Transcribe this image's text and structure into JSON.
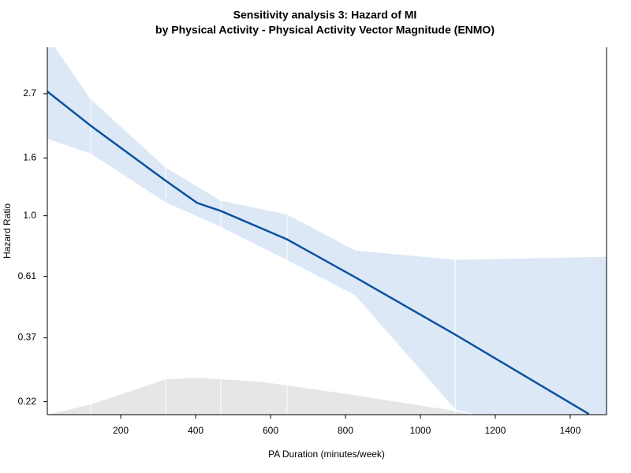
{
  "chart_data": {
    "type": "spline-ci",
    "title": "Sensitivity analysis 3: Hazard of MI",
    "subtitle": "by Physical Activity - Physical Activity Vector Magnitude (ENMO)",
    "x_label": "PA Duration (minutes/week)",
    "y_label": "Hazard Ratio",
    "log_y": true,
    "xlim": [
      4,
      1497
    ],
    "ylim": [
      0.198,
      3.94
    ],
    "xticks": [
      200,
      400,
      600,
      800,
      1000,
      1200,
      1400
    ],
    "yticks": [
      0.22,
      0.37,
      0.61,
      {
        "value": 1,
        "label": "1.0"
      },
      1.6,
      2.7
    ],
    "line": {
      "color": "#0b519e",
      "x": [
        4,
        120,
        320,
        404,
        467,
        644,
        825,
        1093,
        1450
      ],
      "values": [
        2.75,
        2.08,
        1.33,
        1.11,
        1.04,
        0.825,
        0.607,
        0.38,
        0.199
      ]
    },
    "band": {
      "color": "#dce8f6",
      "x": [
        4,
        120,
        320,
        467,
        644,
        825,
        1093,
        1497
      ],
      "lower": [
        1.87,
        1.66,
        1.115,
        0.914,
        0.698,
        0.524,
        0.207,
        0.15
      ],
      "upper": [
        4.3,
        2.58,
        1.48,
        1.13,
        1.01,
        0.754,
        0.698,
        0.716
      ]
    },
    "density": {
      "color": "#e6e6e6",
      "x": [
        4,
        120,
        320,
        404,
        573,
        825,
        1093,
        1141
      ],
      "values": [
        0.198,
        0.215,
        0.264,
        0.267,
        0.259,
        0.232,
        0.204,
        0.198
      ]
    },
    "knots": [
      120,
      320,
      467,
      644,
      1093
    ]
  }
}
